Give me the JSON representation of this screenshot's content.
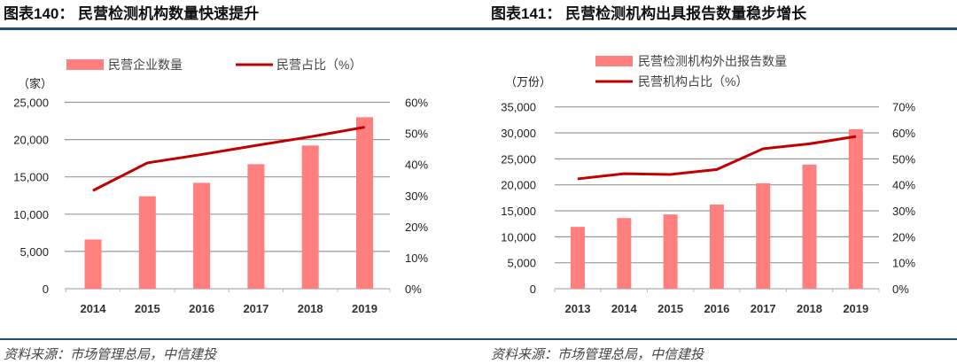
{
  "colors": {
    "bar": "#FF7F7F",
    "line": "#C00000",
    "rule": "#1F4E79",
    "grid": "#999999"
  },
  "chart_data": [
    {
      "type": "bar+line",
      "title": "图表140：  民营检测机构数量快速提升",
      "left_unit": "（家）",
      "categories": [
        "2014",
        "2015",
        "2016",
        "2017",
        "2018",
        "2019"
      ],
      "series": [
        {
          "name": "民营企业数量",
          "type": "bar",
          "axis": "left",
          "values": [
            6600,
            12400,
            14200,
            16700,
            19200,
            23000
          ]
        },
        {
          "name": "民营占比（%）",
          "type": "line",
          "axis": "right",
          "values": [
            31.6,
            40.5,
            43.2,
            46.1,
            48.9,
            52.0
          ]
        }
      ],
      "ylim_left": [
        0,
        25000
      ],
      "yticks_left": [
        "0",
        "5,000",
        "10,000",
        "15,000",
        "20,000",
        "25,000"
      ],
      "ylim_right": [
        0,
        60
      ],
      "yticks_right": [
        "0%",
        "10%",
        "20%",
        "30%",
        "40%",
        "50%",
        "60%"
      ],
      "grid": true,
      "legend": "top",
      "source": "资料来源：市场管理总局，中信建投"
    },
    {
      "type": "bar+line",
      "title": "图表141：  民营检测机构出具报告数量稳步增长",
      "left_unit": "（万份）",
      "categories": [
        "2013",
        "2014",
        "2015",
        "2016",
        "2017",
        "2018",
        "2019"
      ],
      "series": [
        {
          "name": "民营检测机构外出报告数量",
          "type": "bar",
          "axis": "left",
          "values": [
            11900,
            13600,
            14300,
            16200,
            20300,
            23900,
            30700
          ]
        },
        {
          "name": "民营机构占比（%）",
          "type": "line",
          "axis": "right",
          "values": [
            42.3,
            44.3,
            44.0,
            45.9,
            53.9,
            55.8,
            58.6
          ]
        }
      ],
      "ylim_left": [
        0,
        35000
      ],
      "yticks_left": [
        "0",
        "5,000",
        "10,000",
        "15,000",
        "20,000",
        "25,000",
        "30,000",
        "35,000"
      ],
      "ylim_right": [
        0,
        70
      ],
      "yticks_right": [
        "0%",
        "10%",
        "20%",
        "30%",
        "40%",
        "50%",
        "60%",
        "70%"
      ],
      "grid": true,
      "legend": "top",
      "source": "资料来源：市场管理总局，中信建投"
    }
  ]
}
